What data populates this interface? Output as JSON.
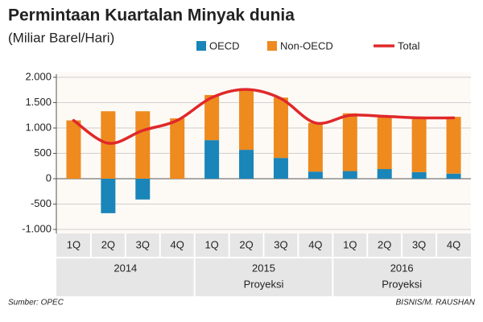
{
  "chart_data": {
    "type": "bar",
    "title": "Permintaan Kuartalan Minyak dunia",
    "subtitle": "(Miliar Barel/Hari)",
    "categories": [
      "1Q",
      "2Q",
      "3Q",
      "4Q",
      "1Q",
      "2Q",
      "3Q",
      "4Q",
      "1Q",
      "2Q",
      "3Q",
      "4Q"
    ],
    "groups": [
      {
        "label": "2014"
      },
      {
        "label": "2015",
        "note": "Proyeksi"
      },
      {
        "label": "2016",
        "note": "Proyeksi"
      }
    ],
    "series": [
      {
        "name": "OECD",
        "color": "#1a85b8",
        "values": [
          0,
          -680,
          -410,
          0,
          760,
          570,
          410,
          140,
          150,
          190,
          130,
          100
        ]
      },
      {
        "name": "Non-OECD",
        "color": "#ee8a1e",
        "values": [
          1150,
          1330,
          1330,
          1190,
          890,
          1190,
          1190,
          960,
          1140,
          1030,
          1050,
          1120
        ]
      },
      {
        "name": "Total",
        "type": "line",
        "color": "#e0282a",
        "values": [
          1150,
          700,
          950,
          1150,
          1600,
          1760,
          1580,
          1100,
          1250,
          1230,
          1200,
          1200
        ]
      }
    ],
    "ylim": [
      -1000,
      2000
    ],
    "yticks": [
      {
        "value": -1000,
        "label": "-1.000"
      },
      -500,
      0,
      500,
      {
        "value": 1000,
        "label": "1.000"
      },
      {
        "value": 1500,
        "label": "1.500"
      },
      {
        "value": 2000,
        "label": "2.000"
      }
    ],
    "grid": true,
    "source": "Sumber: OPEC",
    "credit": "BISNIS/M. RAUSHAN"
  }
}
